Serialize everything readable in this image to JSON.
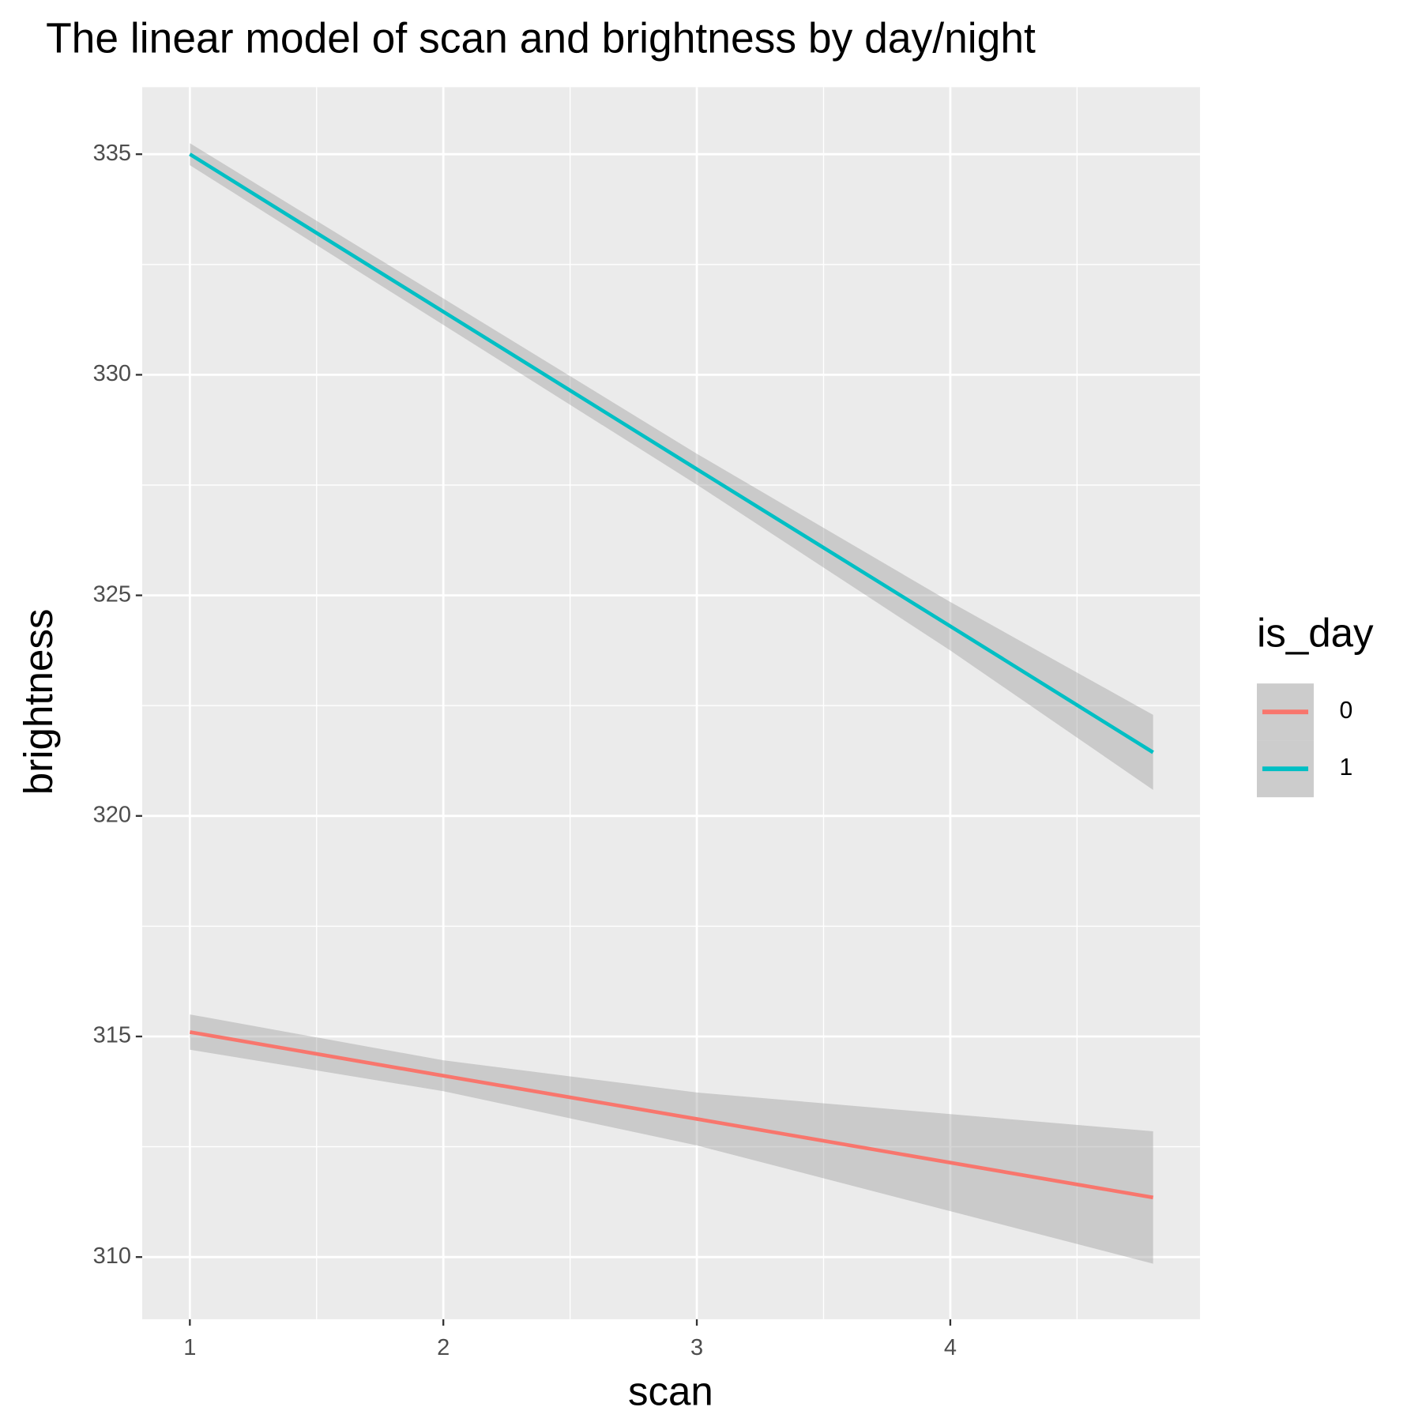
{
  "chart_data": {
    "type": "line",
    "title": "The linear model of scan and brightness by day/night",
    "x_label": "scan",
    "y_label": "brightness",
    "legend_title": "is_day",
    "legend_position": "right",
    "x": [
      1,
      2,
      3,
      4,
      4.8
    ],
    "series": [
      {
        "name": "0",
        "color": "#F8766D",
        "values": [
          315.1,
          314.11,
          313.13,
          312.14,
          311.35
        ],
        "lower": [
          314.7,
          313.76,
          312.53,
          311.04,
          309.85
        ],
        "upper": [
          315.5,
          314.46,
          313.73,
          313.24,
          312.85
        ]
      },
      {
        "name": "1",
        "color": "#00BFC4",
        "values": [
          335.0,
          331.43,
          327.86,
          324.3,
          321.44
        ],
        "lower": [
          334.75,
          331.13,
          327.51,
          323.75,
          320.59
        ],
        "upper": [
          335.25,
          331.73,
          328.21,
          324.85,
          322.29
        ]
      }
    ],
    "band_color": "#999999",
    "xlim": [
      0.812,
      4.985
    ],
    "ylim": [
      308.59,
      336.52
    ],
    "xticks": [
      1,
      2,
      3,
      4
    ],
    "yticks": [
      310,
      315,
      320,
      325,
      330,
      335
    ],
    "x_minor_grid": [
      1.5,
      2.5,
      3.5,
      4.5
    ],
    "y_minor_grid": [
      312.5,
      317.5,
      322.5,
      327.5,
      332.5
    ],
    "grid": true
  }
}
